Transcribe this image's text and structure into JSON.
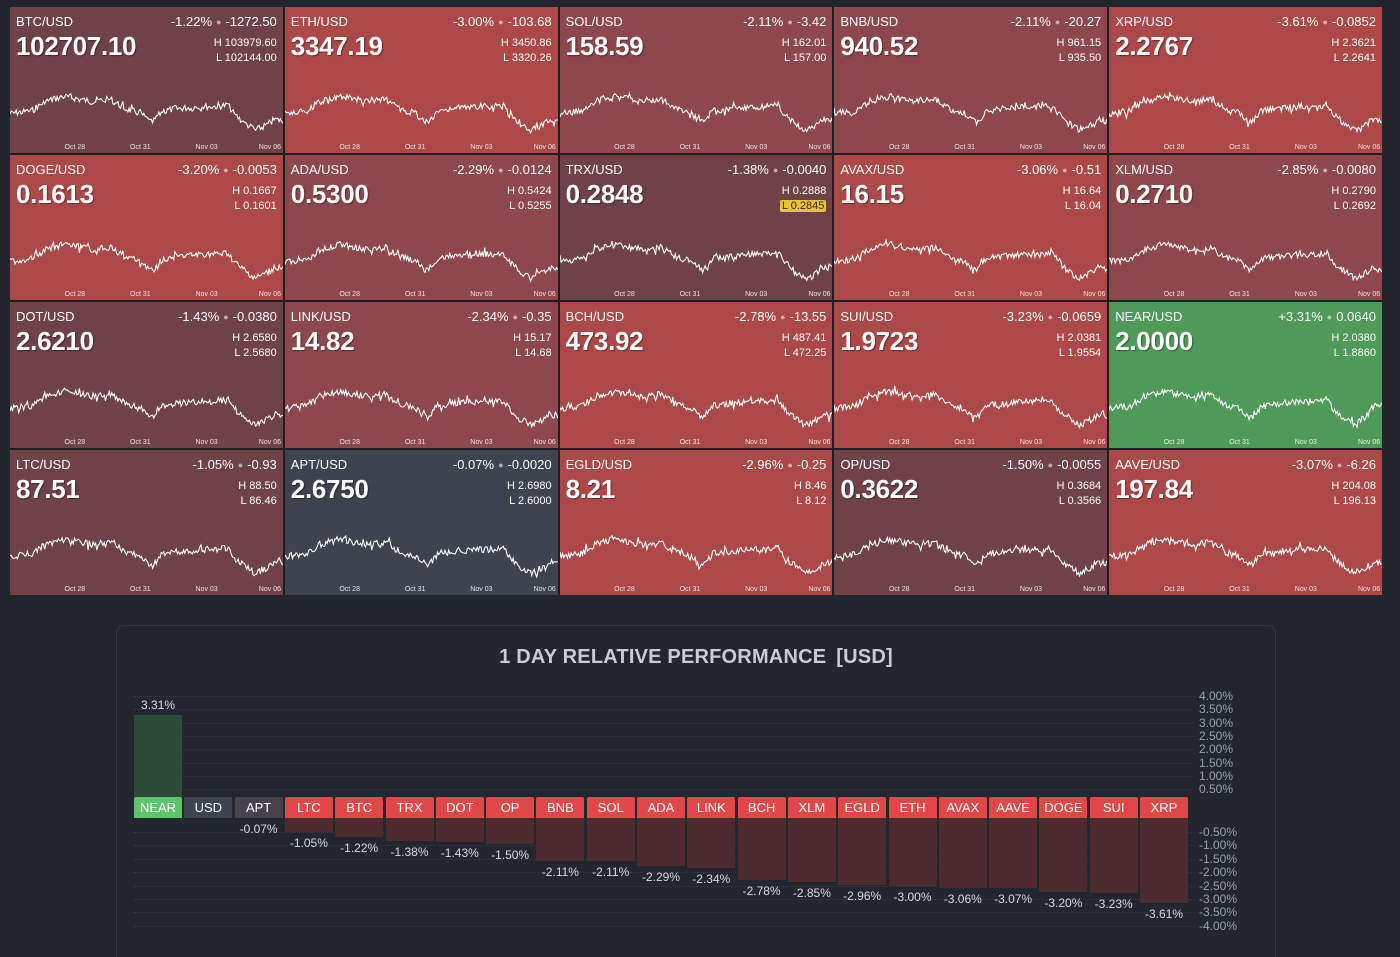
{
  "colors": {
    "background": "#22252e",
    "tile_mild": "#6f4249",
    "tile_medium": "#8e474c",
    "tile_strong": "#ad4848",
    "tile_positive": "#4f9a58",
    "tile_neutral": "#3f4350",
    "bar_label_negative": "#e04848",
    "bar_label_positive": "#5cc46a",
    "bar_label_neutral": "#3f4350",
    "bar_fill_negative": "#4b2a30",
    "bar_fill_positive": "#2e4a38"
  },
  "tiles": [
    {
      "symbol": "BTC/USD",
      "pct": "-1.22%",
      "chg": "-1272.50",
      "price": "102707.10",
      "high": "H 103979.60",
      "low": "L 102144.00",
      "tone": "mild",
      "low_highlight": false
    },
    {
      "symbol": "ETH/USD",
      "pct": "-3.00%",
      "chg": "-103.68",
      "price": "3347.19",
      "high": "H 3450.86",
      "low": "L 3320.26",
      "tone": "strong",
      "low_highlight": false
    },
    {
      "symbol": "SOL/USD",
      "pct": "-2.11%",
      "chg": "-3.42",
      "price": "158.59",
      "high": "H 162.01",
      "low": "L 157.00",
      "tone": "medium",
      "low_highlight": false
    },
    {
      "symbol": "BNB/USD",
      "pct": "-2.11%",
      "chg": "-20.27",
      "price": "940.52",
      "high": "H 961.15",
      "low": "L 935.50",
      "tone": "medium",
      "low_highlight": false
    },
    {
      "symbol": "XRP/USD",
      "pct": "-3.61%",
      "chg": "-0.0852",
      "price": "2.2767",
      "high": "H 2.3621",
      "low": "L 2.2641",
      "tone": "strong",
      "low_highlight": false
    },
    {
      "symbol": "DOGE/USD",
      "pct": "-3.20%",
      "chg": "-0.0053",
      "price": "0.1613",
      "high": "H 0.1667",
      "low": "L 0.1601",
      "tone": "strong",
      "low_highlight": false
    },
    {
      "symbol": "ADA/USD",
      "pct": "-2.29%",
      "chg": "-0.0124",
      "price": "0.5300",
      "high": "H 0.5424",
      "low": "L 0.5255",
      "tone": "medium",
      "low_highlight": false
    },
    {
      "symbol": "TRX/USD",
      "pct": "-1.38%",
      "chg": "-0.0040",
      "price": "0.2848",
      "high": "H 0.2888",
      "low": "L 0.2845",
      "tone": "mild",
      "low_highlight": true
    },
    {
      "symbol": "AVAX/USD",
      "pct": "-3.06%",
      "chg": "-0.51",
      "price": "16.15",
      "high": "H 16.64",
      "low": "L 16.04",
      "tone": "strong",
      "low_highlight": false
    },
    {
      "symbol": "XLM/USD",
      "pct": "-2.85%",
      "chg": "-0.0080",
      "price": "0.2710",
      "high": "H 0.2790",
      "low": "L 0.2692",
      "tone": "medium",
      "low_highlight": false
    },
    {
      "symbol": "DOT/USD",
      "pct": "-1.43%",
      "chg": "-0.0380",
      "price": "2.6210",
      "high": "H 2.6580",
      "low": "L 2.5680",
      "tone": "mild",
      "low_highlight": false
    },
    {
      "symbol": "LINK/USD",
      "pct": "-2.34%",
      "chg": "-0.35",
      "price": "14.82",
      "high": "H 15.17",
      "low": "L 14.68",
      "tone": "medium",
      "low_highlight": false
    },
    {
      "symbol": "BCH/USD",
      "pct": "-2.78%",
      "chg": "-13.55",
      "price": "473.92",
      "high": "H 487.41",
      "low": "L 472.25",
      "tone": "strong",
      "low_highlight": false
    },
    {
      "symbol": "SUI/USD",
      "pct": "-3.23%",
      "chg": "-0.0659",
      "price": "1.9723",
      "high": "H 2.0381",
      "low": "L 1.9554",
      "tone": "strong",
      "low_highlight": false
    },
    {
      "symbol": "NEAR/USD",
      "pct": "+3.31%",
      "chg": "0.0640",
      "price": "2.0000",
      "high": "H 2.0380",
      "low": "L 1.8860",
      "tone": "positive",
      "low_highlight": false
    },
    {
      "symbol": "LTC/USD",
      "pct": "-1.05%",
      "chg": "-0.93",
      "price": "87.51",
      "high": "H 88.50",
      "low": "L 86.46",
      "tone": "mild",
      "low_highlight": false
    },
    {
      "symbol": "APT/USD",
      "pct": "-0.07%",
      "chg": "-0.0020",
      "price": "2.6750",
      "high": "H 2.6980",
      "low": "L 2.6000",
      "tone": "neutral",
      "low_highlight": false
    },
    {
      "symbol": "EGLD/USD",
      "pct": "-2.96%",
      "chg": "-0.25",
      "price": "8.21",
      "high": "H 8.46",
      "low": "L 8.12",
      "tone": "strong",
      "low_highlight": false
    },
    {
      "symbol": "OP/USD",
      "pct": "-1.50%",
      "chg": "-0.0055",
      "price": "0.3622",
      "high": "H 0.3684",
      "low": "L 0.3566",
      "tone": "mild",
      "low_highlight": false
    },
    {
      "symbol": "AAVE/USD",
      "pct": "-3.07%",
      "chg": "-6.26",
      "price": "197.84",
      "high": "H 204.08",
      "low": "L 196.13",
      "tone": "strong",
      "low_highlight": false
    }
  ],
  "sparkline_xaxis": [
    "Oct 28",
    "Oct 31",
    "Nov 03",
    "Nov 06"
  ],
  "performance": {
    "title": "1 DAY RELATIVE PERFORMANCE",
    "unit": "[USD]",
    "y_ticks_positive": [
      "4.00%",
      "3.50%",
      "3.00%",
      "2.50%",
      "2.00%",
      "1.50%",
      "1.00%",
      "0.50%"
    ],
    "y_ticks_negative": [
      "-0.50%",
      "-1.00%",
      "-1.50%",
      "-2.00%",
      "-2.50%",
      "-3.00%",
      "-3.50%",
      "-4.00%"
    ],
    "bars": [
      {
        "label": "NEAR",
        "value": 3.31,
        "text": "3.31%",
        "kind": "positive"
      },
      {
        "label": "USD",
        "value": 0,
        "text": "",
        "kind": "neutral"
      },
      {
        "label": "APT",
        "value": -0.07,
        "text": "-0.07%",
        "kind": "neutral2"
      },
      {
        "label": "LTC",
        "value": -1.05,
        "text": "-1.05%",
        "kind": "negative"
      },
      {
        "label": "BTC",
        "value": -1.22,
        "text": "-1.22%",
        "kind": "negative"
      },
      {
        "label": "TRX",
        "value": -1.38,
        "text": "-1.38%",
        "kind": "negative"
      },
      {
        "label": "DOT",
        "value": -1.43,
        "text": "-1.43%",
        "kind": "negative"
      },
      {
        "label": "OP",
        "value": -1.5,
        "text": "-1.50%",
        "kind": "negative"
      },
      {
        "label": "BNB",
        "value": -2.11,
        "text": "-2.11%",
        "kind": "negative"
      },
      {
        "label": "SOL",
        "value": -2.11,
        "text": "-2.11%",
        "kind": "negative"
      },
      {
        "label": "ADA",
        "value": -2.29,
        "text": "-2.29%",
        "kind": "negative"
      },
      {
        "label": "LINK",
        "value": -2.34,
        "text": "-2.34%",
        "kind": "negative"
      },
      {
        "label": "BCH",
        "value": -2.78,
        "text": "-2.78%",
        "kind": "negative"
      },
      {
        "label": "XLM",
        "value": -2.85,
        "text": "-2.85%",
        "kind": "negative"
      },
      {
        "label": "EGLD",
        "value": -2.96,
        "text": "-2.96%",
        "kind": "negative"
      },
      {
        "label": "ETH",
        "value": -3.0,
        "text": "-3.00%",
        "kind": "negative"
      },
      {
        "label": "AVAX",
        "value": -3.06,
        "text": "-3.06%",
        "kind": "negative"
      },
      {
        "label": "AAVE",
        "value": -3.07,
        "text": "-3.07%",
        "kind": "negative"
      },
      {
        "label": "DOGE",
        "value": -3.2,
        "text": "-3.20%",
        "kind": "negative"
      },
      {
        "label": "SUI",
        "value": -3.23,
        "text": "-3.23%",
        "kind": "negative"
      },
      {
        "label": "XRP",
        "value": -3.61,
        "text": "-3.61%",
        "kind": "negative"
      }
    ]
  },
  "chart_data": {
    "type": "bar",
    "title": "1 DAY RELATIVE PERFORMANCE [USD]",
    "xlabel": "",
    "ylabel": "",
    "categories": [
      "NEAR",
      "USD",
      "APT",
      "LTC",
      "BTC",
      "TRX",
      "DOT",
      "OP",
      "BNB",
      "SOL",
      "ADA",
      "LINK",
      "BCH",
      "XLM",
      "EGLD",
      "ETH",
      "AVAX",
      "AAVE",
      "DOGE",
      "SUI",
      "XRP"
    ],
    "values": [
      3.31,
      0,
      -0.07,
      -1.05,
      -1.22,
      -1.38,
      -1.43,
      -1.5,
      -2.11,
      -2.11,
      -2.29,
      -2.34,
      -2.78,
      -2.85,
      -2.96,
      -3.0,
      -3.06,
      -3.07,
      -3.2,
      -3.23,
      -3.61
    ],
    "ylim": [
      -4.0,
      4.0
    ],
    "grid": true,
    "legend": "none"
  }
}
